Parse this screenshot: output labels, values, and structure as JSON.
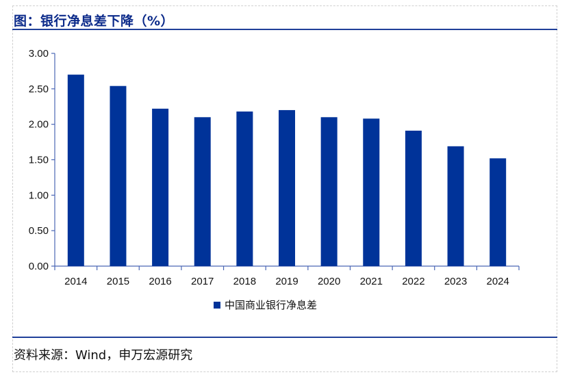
{
  "title": "图：银行净息差下降（%）",
  "source": "资料来源：Wind，申万宏源研究",
  "colors": {
    "bar": "#003399",
    "axis": "#4a66b5",
    "title": "#0b2a8a"
  },
  "chart_data": {
    "type": "bar",
    "title": "",
    "xlabel": "",
    "ylabel": "",
    "categories": [
      "2014",
      "2015",
      "2016",
      "2017",
      "2018",
      "2019",
      "2020",
      "2021",
      "2022",
      "2023",
      "2024"
    ],
    "series": [
      {
        "name": "中国商业银行净息差",
        "values": [
          2.7,
          2.54,
          2.22,
          2.1,
          2.18,
          2.2,
          2.1,
          2.08,
          1.91,
          1.69,
          1.52
        ]
      }
    ],
    "ylim": [
      0,
      3
    ],
    "yticks": [
      "0.00",
      "0.50",
      "1.00",
      "1.50",
      "2.00",
      "2.50",
      "3.00"
    ],
    "grid": false,
    "legend_position": "bottom-center"
  }
}
